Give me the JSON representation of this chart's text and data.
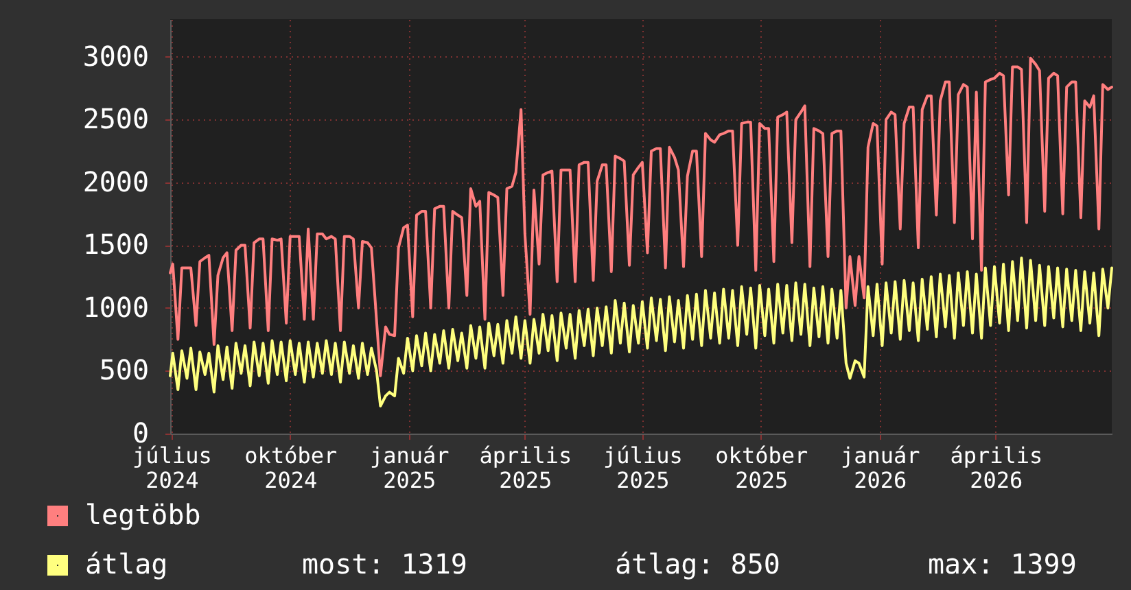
{
  "chart_data": {
    "type": "line",
    "x": [
      "2024-07-14",
      "2024-07-16",
      "2024-07-20",
      "2024-07-23",
      "2024-07-27",
      "2024-07-30",
      "2024-08-03",
      "2024-08-06",
      "2024-08-10",
      "2024-08-13",
      "2024-08-17",
      "2024-08-20",
      "2024-08-24",
      "2024-08-27",
      "2024-08-31",
      "2024-09-03",
      "2024-09-07",
      "2024-09-10",
      "2024-09-14",
      "2024-09-17",
      "2024-09-21",
      "2024-09-24",
      "2024-09-28",
      "2024-10-01",
      "2024-10-05",
      "2024-10-08",
      "2024-10-12",
      "2024-10-15",
      "2024-10-19",
      "2024-10-22",
      "2024-10-26",
      "2024-10-29",
      "2024-11-02",
      "2024-11-05",
      "2024-11-09",
      "2024-11-12",
      "2024-11-16",
      "2024-11-19",
      "2024-11-23",
      "2024-11-26",
      "2024-11-30",
      "2024-12-03",
      "2024-12-07",
      "2024-12-10",
      "2024-12-14",
      "2024-12-17",
      "2024-12-21",
      "2024-12-24",
      "2024-12-28",
      "2024-12-31",
      "2025-01-04",
      "2025-01-07",
      "2025-01-11",
      "2025-01-14",
      "2025-01-18",
      "2025-01-21",
      "2025-01-25",
      "2025-01-28",
      "2025-02-01",
      "2025-02-04",
      "2025-02-08",
      "2025-02-11",
      "2025-02-15",
      "2025-02-18",
      "2025-02-22",
      "2025-02-25",
      "2025-03-01",
      "2025-03-04",
      "2025-03-08",
      "2025-03-11",
      "2025-03-15",
      "2025-03-18",
      "2025-03-22",
      "2025-03-25",
      "2025-03-29",
      "2025-04-01",
      "2025-04-05",
      "2025-04-08",
      "2025-04-12",
      "2025-04-15",
      "2025-04-19",
      "2025-04-22",
      "2025-04-26",
      "2025-04-29",
      "2025-05-03",
      "2025-05-06",
      "2025-05-10",
      "2025-05-13",
      "2025-05-17",
      "2025-05-20",
      "2025-05-24",
      "2025-05-27",
      "2025-05-31",
      "2025-06-03",
      "2025-06-07",
      "2025-06-10",
      "2025-06-14",
      "2025-06-17",
      "2025-06-21",
      "2025-06-24",
      "2025-06-28",
      "2025-07-01",
      "2025-07-05",
      "2025-07-08",
      "2025-07-12",
      "2025-07-15",
      "2025-07-19",
      "2025-07-22",
      "2025-07-26",
      "2025-07-29",
      "2025-08-02",
      "2025-08-05",
      "2025-08-09",
      "2025-08-12",
      "2025-08-16",
      "2025-08-19",
      "2025-08-23",
      "2025-08-26",
      "2025-08-30",
      "2025-09-02",
      "2025-09-06",
      "2025-09-09",
      "2025-09-13",
      "2025-09-16",
      "2025-09-20",
      "2025-09-23",
      "2025-09-27",
      "2025-09-30",
      "2025-10-04",
      "2025-10-07",
      "2025-10-11",
      "2025-10-14",
      "2025-10-18",
      "2025-10-21",
      "2025-10-25",
      "2025-10-28",
      "2025-11-01",
      "2025-11-04",
      "2025-11-08",
      "2025-11-11",
      "2025-11-15",
      "2025-11-18",
      "2025-11-22",
      "2025-11-25",
      "2025-11-29",
      "2025-12-02",
      "2025-12-06",
      "2025-12-09",
      "2025-12-13",
      "2025-12-16",
      "2025-12-20",
      "2025-12-23",
      "2025-12-27",
      "2025-12-30",
      "2026-01-03",
      "2026-01-06",
      "2026-01-10",
      "2026-01-13",
      "2026-01-17",
      "2026-01-20",
      "2026-01-24",
      "2026-01-27",
      "2026-01-31",
      "2026-02-03",
      "2026-02-07",
      "2026-02-10",
      "2026-02-14",
      "2026-02-17",
      "2026-02-21",
      "2026-02-24",
      "2026-02-28",
      "2026-03-03",
      "2026-03-07",
      "2026-03-10",
      "2026-03-14",
      "2026-03-17",
      "2026-03-21",
      "2026-03-24",
      "2026-03-28",
      "2026-03-31",
      "2026-04-04",
      "2026-04-07",
      "2026-04-11",
      "2026-04-14",
      "2026-04-18",
      "2026-04-21",
      "2026-04-25",
      "2026-04-28",
      "2026-05-02",
      "2026-05-05",
      "2026-05-09",
      "2026-05-12",
      "2026-05-16",
      "2026-05-19",
      "2026-05-23",
      "2026-05-26",
      "2026-05-30",
      "2026-06-02",
      "2026-06-06",
      "2026-06-09",
      "2026-06-13",
      "2026-06-16",
      "2026-06-20",
      "2026-06-23",
      "2026-06-27",
      "2026-06-30",
      "2026-07-04",
      "2026-07-07",
      "2026-07-11",
      "2026-07-14"
    ],
    "series": [
      {
        "name": "legtöbb",
        "color": "#ff7f7f",
        "values": [
          1280,
          1350,
          750,
          1320,
          1320,
          1320,
          860,
          1370,
          1400,
          1420,
          710,
          1260,
          1400,
          1440,
          820,
          1460,
          1500,
          1500,
          840,
          1520,
          1550,
          1550,
          820,
          1550,
          1540,
          1550,
          880,
          1570,
          1570,
          1570,
          910,
          1630,
          910,
          1590,
          1590,
          1550,
          1570,
          1550,
          820,
          1570,
          1570,
          1550,
          1000,
          1530,
          1520,
          1480,
          900,
          460,
          850,
          790,
          780,
          1480,
          1640,
          1660,
          930,
          1740,
          1770,
          1770,
          1000,
          1790,
          1810,
          1810,
          1000,
          1770,
          1740,
          1720,
          1100,
          1950,
          1810,
          1850,
          910,
          1920,
          1900,
          1880,
          1100,
          1950,
          1970,
          2080,
          2580,
          1590,
          950,
          1940,
          1350,
          2060,
          2080,
          2090,
          1210,
          2100,
          2100,
          2100,
          1210,
          2140,
          2160,
          2160,
          1220,
          2010,
          2140,
          2140,
          1290,
          2210,
          2190,
          2170,
          1340,
          2060,
          2120,
          2160,
          1440,
          2250,
          2270,
          2270,
          1320,
          2280,
          2200,
          2100,
          1330,
          2050,
          2250,
          2250,
          1410,
          2390,
          2340,
          2320,
          2380,
          2390,
          2410,
          2410,
          1500,
          2470,
          2480,
          2480,
          1300,
          2470,
          2430,
          2430,
          1370,
          2520,
          2540,
          2560,
          1520,
          2500,
          2560,
          2610,
          1330,
          2430,
          2410,
          2390,
          1410,
          2390,
          2410,
          2410,
          1000,
          1410,
          1020,
          1410,
          1080,
          2280,
          2470,
          2450,
          1350,
          2500,
          2560,
          2540,
          1630,
          2470,
          2600,
          2600,
          1480,
          2580,
          2690,
          2690,
          1740,
          2650,
          2800,
          2800,
          1680,
          2700,
          2780,
          2760,
          1550,
          2720,
          1300,
          2800,
          2820,
          2830,
          2870,
          2850,
          1900,
          2920,
          2920,
          2900,
          1680,
          2990,
          2940,
          2890,
          1770,
          2830,
          2870,
          2850,
          1750,
          2760,
          2800,
          2800,
          1720,
          2650,
          2600,
          2690,
          1630,
          2780,
          2740,
          2760
        ]
      },
      {
        "name": "átlag",
        "color": "#ffff7f",
        "values": [
          460,
          640,
          350,
          660,
          440,
          680,
          350,
          650,
          470,
          640,
          330,
          700,
          430,
          690,
          360,
          720,
          480,
          700,
          380,
          730,
          460,
          720,
          400,
          740,
          470,
          730,
          420,
          740,
          470,
          720,
          410,
          730,
          450,
          720,
          480,
          740,
          470,
          720,
          410,
          730,
          480,
          700,
          440,
          720,
          470,
          680,
          500,
          220,
          300,
          330,
          300,
          600,
          480,
          760,
          500,
          780,
          540,
          800,
          500,
          790,
          560,
          820,
          520,
          830,
          580,
          800,
          520,
          860,
          600,
          850,
          520,
          880,
          620,
          870,
          560,
          900,
          640,
          930,
          600,
          900,
          560,
          910,
          640,
          950,
          660,
          940,
          580,
          960,
          680,
          950,
          600,
          980,
          700,
          990,
          620,
          1000,
          700,
          1010,
          640,
          1060,
          720,
          1040,
          650,
          1020,
          720,
          1050,
          680,
          1080,
          740,
          1070,
          660,
          1090,
          730,
          1060,
          680,
          1100,
          750,
          1110,
          700,
          1140,
          760,
          1120,
          720,
          1150,
          760,
          1140,
          700,
          1170,
          790,
          1160,
          680,
          1180,
          780,
          1150,
          720,
          1190,
          800,
          1180,
          740,
          1200,
          790,
          1190,
          700,
          1160,
          770,
          1170,
          720,
          1150,
          760,
          1140,
          560,
          440,
          580,
          560,
          450,
          1170,
          780,
          1190,
          700,
          1200,
          800,
          1210,
          750,
          1220,
          820,
          1200,
          740,
          1230,
          830,
          1250,
          770,
          1270,
          850,
          1260,
          760,
          1280,
          860,
          1290,
          800,
          1270,
          760,
          1320,
          860,
          1330,
          880,
          1350,
          820,
          1370,
          900,
          1399,
          840,
          1380,
          900,
          1340,
          860,
          1330,
          920,
          1320,
          850,
          1310,
          900,
          1300,
          820,
          1290,
          880,
          1280,
          780,
          1310,
          1000,
          1319
        ]
      }
    ],
    "xlim": [
      "2024-07-14",
      "2026-07-14"
    ],
    "xticks": [
      {
        "value": "2024-07-15",
        "label": "július 2024"
      },
      {
        "value": "2024-10-15",
        "label": "október 2024"
      },
      {
        "value": "2025-01-15",
        "label": "január 2025"
      },
      {
        "value": "2025-04-15",
        "label": "április 2025"
      },
      {
        "value": "2025-07-15",
        "label": "július 2025"
      },
      {
        "value": "2025-10-15",
        "label": "október 2025"
      },
      {
        "value": "2026-01-15",
        "label": "január 2026"
      },
      {
        "value": "2026-04-15",
        "label": "április 2026"
      }
    ],
    "ylim": [
      0,
      3300
    ],
    "yticks": [
      0,
      500,
      1000,
      1500,
      2000,
      2500,
      3000
    ],
    "grid": true,
    "legend": "bottom",
    "annotations": [
      "most: 1319",
      "átlag: 850",
      "max: 1399"
    ]
  }
}
